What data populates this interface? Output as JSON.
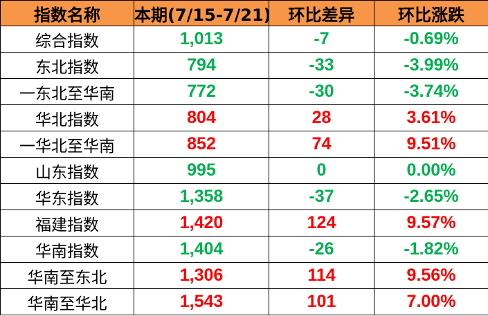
{
  "colors": {
    "header_bg": "#F79646",
    "up": "#FF0000",
    "down": "#00B050"
  },
  "headers": [
    "指数名称",
    "本期(7/15-7/21)",
    "环比差异",
    "环比涨跌"
  ],
  "rows": [
    {
      "name": "综合指数",
      "value": "1,013",
      "diff": "-7",
      "pct": "-0.69%",
      "trend": "down"
    },
    {
      "name": "东北指数",
      "value": "794",
      "diff": "-33",
      "pct": "-3.99%",
      "trend": "down"
    },
    {
      "name": "一东北至华南",
      "value": "772",
      "diff": "-30",
      "pct": "-3.74%",
      "trend": "down"
    },
    {
      "name": "华北指数",
      "value": "804",
      "diff": "28",
      "pct": "3.61%",
      "trend": "up"
    },
    {
      "name": "一华北至华南",
      "value": "852",
      "diff": "74",
      "pct": "9.51%",
      "trend": "up"
    },
    {
      "name": "山东指数",
      "value": "995",
      "diff": "0",
      "pct": "0.00%",
      "trend": "down"
    },
    {
      "name": "华东指数",
      "value": "1,358",
      "diff": "-37",
      "pct": "-2.65%",
      "trend": "down"
    },
    {
      "name": "福建指数",
      "value": "1,420",
      "diff": "124",
      "pct": "9.57%",
      "trend": "up"
    },
    {
      "name": "华南指数",
      "value": "1,404",
      "diff": "-26",
      "pct": "-1.82%",
      "trend": "down"
    },
    {
      "name": "华南至东北",
      "value": "1,306",
      "diff": "114",
      "pct": "9.56%",
      "trend": "up"
    },
    {
      "name": "华南至华北",
      "value": "1,543",
      "diff": "101",
      "pct": "7.00%",
      "trend": "up"
    }
  ]
}
